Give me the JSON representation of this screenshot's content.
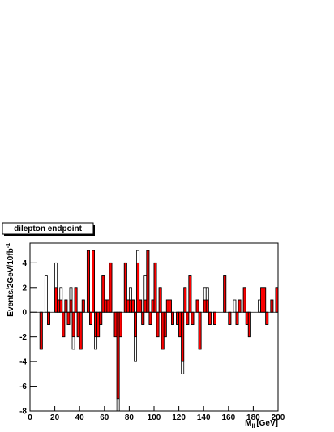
{
  "chart_data": {
    "type": "histogram",
    "title": "dilepton endpoint",
    "xlabel": "M",
    "xlabel_sub": "ll",
    "xlabel_unit": "[GeV]",
    "ylabel": "Events/2GeV/10fb",
    "ylabel_sup": "-1",
    "bins": [
      0,
      2,
      4,
      6,
      8,
      10,
      12,
      14,
      16,
      18,
      20,
      22,
      24,
      26,
      28,
      30,
      32,
      34,
      36,
      38,
      40,
      42,
      44,
      46,
      48,
      50,
      52,
      54,
      56,
      58,
      60,
      62,
      64,
      66,
      68,
      70,
      72,
      74,
      76,
      78,
      80,
      82,
      84,
      86,
      88,
      90,
      92,
      94,
      96,
      98,
      100,
      102,
      104,
      106,
      108,
      110,
      112,
      114,
      116,
      118,
      120,
      122,
      124,
      126,
      128,
      130,
      132,
      134,
      136,
      138,
      140,
      142,
      144,
      146,
      148,
      150,
      152,
      154,
      156,
      158,
      160,
      162,
      164,
      166,
      168,
      170,
      172,
      174,
      176,
      178,
      180,
      182,
      184,
      186,
      188,
      190,
      192,
      194,
      196,
      198,
      200
    ],
    "series": [
      {
        "color": "#ffffff",
        "values": [
          0,
          0,
          0,
          0,
          -3,
          0,
          3,
          -1,
          0,
          0,
          4,
          1,
          2,
          -2,
          1,
          -1,
          2,
          -3,
          2,
          -2,
          -3,
          1,
          0,
          5,
          -1,
          5,
          -3,
          -2,
          -1,
          3,
          1,
          1,
          4,
          0,
          -2,
          -8,
          -2,
          0,
          4,
          1,
          2,
          1,
          -4,
          5,
          1,
          -1,
          3,
          5,
          -1,
          1,
          4,
          -2,
          2,
          -3,
          -2,
          1,
          1,
          -1,
          0,
          -1,
          -2,
          -5,
          2,
          -1,
          3,
          -1,
          0,
          1,
          -3,
          0,
          2,
          2,
          -1,
          0,
          -1,
          0,
          0,
          0,
          3,
          0,
          -1,
          0,
          1,
          -1,
          1,
          0,
          2,
          -1,
          -2,
          0,
          0,
          0,
          1,
          2,
          2,
          -1,
          0,
          1,
          0,
          2
        ]
      },
      {
        "color": "#ff0000",
        "values": [
          0,
          0,
          0,
          0,
          -3,
          0,
          0,
          -1,
          0,
          0,
          2,
          1,
          1,
          -2,
          1,
          -1,
          1,
          -2,
          2,
          -2,
          -3,
          1,
          0,
          5,
          -1,
          5,
          -2,
          -2,
          -1,
          3,
          1,
          1,
          4,
          0,
          -2,
          -7,
          -2,
          0,
          4,
          1,
          1,
          1,
          -2,
          4,
          1,
          -1,
          1,
          5,
          -1,
          1,
          4,
          -2,
          2,
          -3,
          -2,
          1,
          1,
          -1,
          0,
          -1,
          -2,
          -4,
          2,
          -1,
          3,
          -1,
          0,
          1,
          -3,
          0,
          1,
          1,
          -1,
          0,
          -1,
          0,
          0,
          0,
          3,
          0,
          -1,
          0,
          0,
          -1,
          1,
          0,
          2,
          -1,
          -2,
          0,
          0,
          0,
          0,
          2,
          2,
          -1,
          0,
          1,
          0,
          2
        ]
      }
    ],
    "xlim": [
      0,
      200
    ],
    "xticks": [
      0,
      20,
      40,
      60,
      80,
      100,
      120,
      140,
      160,
      180,
      200
    ],
    "ylim": [
      -8,
      5.6
    ],
    "yticks": [
      -8,
      -6,
      -4,
      -2,
      0,
      2,
      4
    ]
  }
}
